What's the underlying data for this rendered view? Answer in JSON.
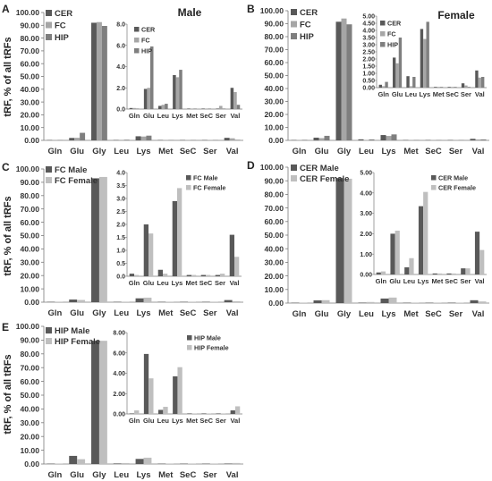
{
  "figure": {
    "ylabel": "tRF, % of all tRFs"
  },
  "chart_data": [
    {
      "type": "bar",
      "panel": "A",
      "title": "",
      "inset_title": "Male",
      "xlabel": "",
      "ylabel": "tRF, % of all tRFs",
      "categories": [
        "Gln",
        "Glu",
        "Gly",
        "Leu",
        "Lys",
        "Met",
        "SeC",
        "Ser",
        "Val"
      ],
      "ylim": [
        0,
        100
      ],
      "yticks": [
        "0.00",
        "10.00",
        "20.00",
        "30.00",
        "40.00",
        "50.00",
        "60.00",
        "70.00",
        "80.00",
        "90.00",
        "100.00"
      ],
      "series": [
        {
          "name": "CER",
          "color": "#595959",
          "values": [
            0.1,
            1.9,
            92.0,
            0.3,
            3.2,
            0.05,
            0.05,
            0.05,
            2.0
          ]
        },
        {
          "name": "FC",
          "color": "#a6a6a6",
          "values": [
            0.1,
            2.0,
            92.5,
            0.4,
            3.0,
            0.05,
            0.05,
            0.3,
            1.6
          ]
        },
        {
          "name": "HIP",
          "color": "#7f7f7f",
          "values": [
            0.05,
            5.9,
            89.5,
            0.5,
            3.7,
            0.05,
            0.05,
            0.05,
            0.4
          ]
        }
      ],
      "legend": "top-left",
      "inset": {
        "categories": [
          "Gln",
          "Glu",
          "Leu",
          "Lys",
          "Met",
          "SeC",
          "Ser",
          "Val"
        ],
        "ylim": [
          0,
          8
        ],
        "yticks": [
          "0.0",
          "2.0",
          "4.0",
          "6.0",
          "8.0"
        ],
        "series": [
          {
            "name": "CER",
            "values": [
              0.1,
              1.9,
              0.3,
              3.2,
              0.05,
              0.05,
              0.05,
              2.0
            ]
          },
          {
            "name": "FC",
            "values": [
              0.1,
              2.0,
              0.4,
              3.0,
              0.05,
              0.05,
              0.3,
              1.6
            ]
          },
          {
            "name": "HIP",
            "values": [
              0.05,
              5.9,
              0.5,
              3.7,
              0.05,
              0.05,
              0.05,
              0.4
            ]
          }
        ]
      }
    },
    {
      "type": "bar",
      "panel": "B",
      "title": "",
      "inset_title": "Female",
      "xlabel": "",
      "ylabel": "",
      "categories": [
        "Gln",
        "Glu",
        "Gly",
        "Leu",
        "Lys",
        "Met",
        "SeC",
        "Ser",
        "Val"
      ],
      "ylim": [
        0,
        100
      ],
      "yticks": [
        "0.00",
        "10.00",
        "20.00",
        "30.00",
        "40.00",
        "50.00",
        "60.00",
        "70.00",
        "80.00",
        "90.00",
        "100.00"
      ],
      "series": [
        {
          "name": "CER",
          "color": "#595959",
          "values": [
            0.2,
            2.1,
            91.5,
            0.8,
            4.1,
            0.05,
            0.05,
            0.3,
            1.2
          ]
        },
        {
          "name": "FC",
          "color": "#a6a6a6",
          "values": [
            0.1,
            1.7,
            94.0,
            0.1,
            3.4,
            0.05,
            0.05,
            0.15,
            0.7
          ]
        },
        {
          "name": "HIP",
          "color": "#7f7f7f",
          "values": [
            0.4,
            3.5,
            89.5,
            0.75,
            4.6,
            0.05,
            0.05,
            0.05,
            0.75
          ]
        }
      ],
      "legend": "top-left",
      "inset": {
        "categories": [
          "Gln",
          "Glu",
          "Leu",
          "Lys",
          "Met",
          "SeC",
          "Ser",
          "Val"
        ],
        "ylim": [
          0,
          5
        ],
        "yticks": [
          "0.00",
          "0.50",
          "1.00",
          "1.50",
          "2.00",
          "2.50",
          "3.00",
          "3.50",
          "4.00",
          "4.50",
          "5.00"
        ],
        "series": [
          {
            "name": "CER",
            "values": [
              0.2,
              2.1,
              0.8,
              4.1,
              0.05,
              0.05,
              0.3,
              1.2
            ]
          },
          {
            "name": "FC",
            "values": [
              0.1,
              1.7,
              0.1,
              3.4,
              0.05,
              0.05,
              0.15,
              0.7
            ]
          },
          {
            "name": "HIP",
            "values": [
              0.4,
              3.5,
              0.75,
              4.6,
              0.05,
              0.05,
              0.05,
              0.75
            ]
          }
        ]
      }
    },
    {
      "type": "bar",
      "panel": "C",
      "title": "",
      "inset_title": "",
      "xlabel": "",
      "ylabel": "tRF, % of all tRFs",
      "categories": [
        "Gln",
        "Glu",
        "Gly",
        "Leu",
        "Lys",
        "Met",
        "SeC",
        "Ser",
        "Val"
      ],
      "ylim": [
        0,
        100
      ],
      "yticks": [
        "0.00",
        "10.00",
        "20.00",
        "30.00",
        "40.00",
        "50.00",
        "60.00",
        "70.00",
        "80.00",
        "90.00",
        "100.00"
      ],
      "series": [
        {
          "name": "FC Male",
          "color": "#595959",
          "values": [
            0.1,
            2.0,
            93.0,
            0.25,
            2.9,
            0.05,
            0.05,
            0.05,
            1.6
          ]
        },
        {
          "name": "FC Female",
          "color": "#bfbfbf",
          "values": [
            0.05,
            1.65,
            94.0,
            0.1,
            3.4,
            0.05,
            0.05,
            0.1,
            0.75
          ]
        }
      ],
      "legend": "top-left",
      "inset": {
        "categories": [
          "Gln",
          "Glu",
          "Leu",
          "Lys",
          "Met",
          "SeC",
          "Ser",
          "Val"
        ],
        "ylim": [
          0,
          4
        ],
        "yticks": [
          "0.0",
          "0.5",
          "1.0",
          "1.5",
          "2.0",
          "2.5",
          "3.0",
          "3.5",
          "4.0"
        ],
        "series": [
          {
            "name": "FC Male",
            "values": [
              0.1,
              2.0,
              0.25,
              2.9,
              0.05,
              0.05,
              0.05,
              1.6
            ]
          },
          {
            "name": "FC Female",
            "values": [
              0.05,
              1.65,
              0.1,
              3.4,
              0.05,
              0.05,
              0.1,
              0.75
            ]
          }
        ]
      }
    },
    {
      "type": "bar",
      "panel": "D",
      "title": "",
      "inset_title": "",
      "xlabel": "",
      "ylabel": "",
      "categories": [
        "Gln",
        "Glu",
        "Gly",
        "Leu",
        "Lys",
        "Met",
        "SeC",
        "Ser",
        "Val"
      ],
      "ylim": [
        0,
        100
      ],
      "yticks": [
        "0.00",
        "10.00",
        "20.00",
        "30.00",
        "40.00",
        "50.00",
        "60.00",
        "70.00",
        "80.00",
        "90.00",
        "100.00"
      ],
      "series": [
        {
          "name": "CER Male",
          "color": "#595959",
          "values": [
            0.1,
            2.0,
            92.0,
            0.35,
            3.35,
            0.05,
            0.05,
            0.3,
            2.1
          ]
        },
        {
          "name": "CER Female",
          "color": "#bfbfbf",
          "values": [
            0.15,
            2.15,
            91.5,
            0.8,
            4.05,
            0.05,
            0.05,
            0.3,
            1.2
          ]
        }
      ],
      "legend": "top-left",
      "inset": {
        "categories": [
          "Gln",
          "Glu",
          "Leu",
          "Lys",
          "Met",
          "SeC",
          "Ser",
          "Val"
        ],
        "ylim": [
          0,
          5
        ],
        "yticks": [
          "0.00",
          "1.00",
          "2.00",
          "3.00",
          "4.00",
          "5.00"
        ],
        "series": [
          {
            "name": "CER Male",
            "values": [
              0.1,
              2.0,
              0.35,
              3.35,
              0.05,
              0.05,
              0.3,
              2.1
            ]
          },
          {
            "name": "CER Female",
            "values": [
              0.15,
              2.15,
              0.8,
              4.05,
              0.05,
              0.05,
              0.3,
              1.2
            ]
          }
        ]
      }
    },
    {
      "type": "bar",
      "panel": "E",
      "title": "",
      "inset_title": "",
      "xlabel": "",
      "ylabel": "tRF, % of all tRFs",
      "categories": [
        "Gln",
        "Glu",
        "Gly",
        "Leu",
        "Lys",
        "Met",
        "SeC",
        "Ser",
        "Val"
      ],
      "ylim": [
        0,
        100
      ],
      "yticks": [
        "0.00",
        "10.00",
        "20.00",
        "30.00",
        "40.00",
        "50.00",
        "60.00",
        "70.00",
        "80.00",
        "90.00",
        "100.00"
      ],
      "series": [
        {
          "name": "HIP Male",
          "color": "#595959",
          "values": [
            0.05,
            5.9,
            89.5,
            0.4,
            3.7,
            0.05,
            0.05,
            0.05,
            0.35
          ]
        },
        {
          "name": "HIP Female",
          "color": "#bfbfbf",
          "values": [
            0.35,
            3.5,
            89.5,
            0.7,
            4.6,
            0.05,
            0.05,
            0.05,
            0.75
          ]
        }
      ],
      "legend": "top-left",
      "inset": {
        "categories": [
          "Gln",
          "Glu",
          "Leu",
          "Lys",
          "Met",
          "SeC",
          "Ser",
          "Val"
        ],
        "ylim": [
          0,
          8
        ],
        "yticks": [
          "0.00",
          "2.00",
          "4.00",
          "6.00",
          "8.00"
        ],
        "series": [
          {
            "name": "HIP Male",
            "values": [
              0.05,
              5.9,
              0.4,
              3.7,
              0.05,
              0.05,
              0.05,
              0.35
            ]
          },
          {
            "name": "HIP Female",
            "values": [
              0.35,
              3.5,
              0.7,
              4.6,
              0.05,
              0.05,
              0.05,
              0.75
            ]
          }
        ]
      }
    }
  ]
}
